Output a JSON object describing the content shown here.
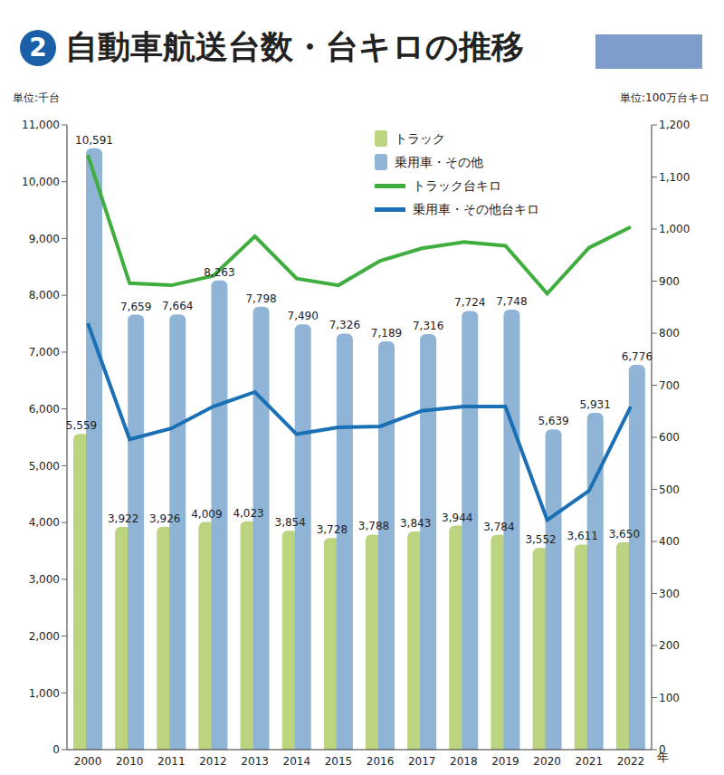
{
  "chart_data": {
    "type": "bar",
    "title_number": "2",
    "title": "自動車航送台数・台キロの推移",
    "y_label": "単位:千台",
    "y2_label": "単位:100万台キロ",
    "x_label": "年",
    "categories": [
      "2000",
      "2010",
      "2011",
      "2012",
      "2013",
      "2014",
      "2015",
      "2016",
      "2017",
      "2018",
      "2019",
      "2020",
      "2021",
      "2022"
    ],
    "series": [
      {
        "name": "トラック",
        "type": "bar",
        "color": "#bcd37f",
        "values": [
          5559,
          3922,
          3926,
          4009,
          4023,
          3854,
          3728,
          3788,
          3843,
          3944,
          3784,
          3552,
          3611,
          3650
        ],
        "value_labels": [
          "5,559",
          "3,922",
          "3,926",
          "4,009",
          "4,023",
          "3,854",
          "3,728",
          "3,788",
          "3,843",
          "3,944",
          "3,784",
          "3,552",
          "3,611",
          "3,650"
        ]
      },
      {
        "name": "乗用車・その他",
        "type": "bar",
        "color": "#8fb4d6",
        "values": [
          10591,
          7659,
          7664,
          8263,
          7798,
          7490,
          7326,
          7189,
          7316,
          7724,
          7748,
          5639,
          5931,
          6776
        ],
        "value_labels": [
          "10,591",
          "7,659",
          "7,664",
          "8,263",
          "7,798",
          "7,490",
          "7,326",
          "7,189",
          "7,316",
          "7,724",
          "7,748",
          "5,639",
          "5,931",
          "6,776"
        ]
      },
      {
        "name": "トラック台キロ",
        "type": "line",
        "axis": "y2",
        "color": "#3fae3f",
        "values": [
          1142,
          896,
          892,
          910,
          986,
          905,
          892,
          939,
          963,
          975,
          968,
          876,
          964,
          1004
        ]
      },
      {
        "name": "乗用車・その他台キロ",
        "type": "line",
        "axis": "y2",
        "color": "#1a6fb5",
        "values": [
          819,
          596,
          617,
          659,
          687,
          606,
          619,
          621,
          651,
          659,
          659,
          441,
          497,
          659
        ]
      }
    ],
    "ylim": [
      0,
      11000
    ],
    "yticks": [
      0,
      {
        "value": 1000,
        "label": "1,000"
      },
      {
        "value": 2000,
        "label": "2,000"
      },
      {
        "value": 3000,
        "label": "3,000"
      },
      {
        "value": 4000,
        "label": "4,000"
      },
      {
        "value": 5000,
        "label": "5,000"
      },
      {
        "value": 6000,
        "label": "6,000"
      },
      {
        "value": 7000,
        "label": "7,000"
      },
      {
        "value": 8000,
        "label": "8,000"
      },
      {
        "value": 9000,
        "label": "9,000"
      },
      {
        "value": 10000,
        "label": "10,000"
      },
      {
        "value": 11000,
        "label": "11,000"
      }
    ],
    "y2lim": [
      0,
      1200
    ],
    "y2ticks": [
      0,
      100,
      200,
      300,
      400,
      500,
      600,
      700,
      800,
      900,
      {
        "value": 1000,
        "label": "1,000"
      },
      {
        "value": 1100,
        "label": "1,100"
      },
      {
        "value": 1200,
        "label": "1,200"
      }
    ],
    "data_labels": true,
    "grid": false,
    "legend": "upper right"
  }
}
